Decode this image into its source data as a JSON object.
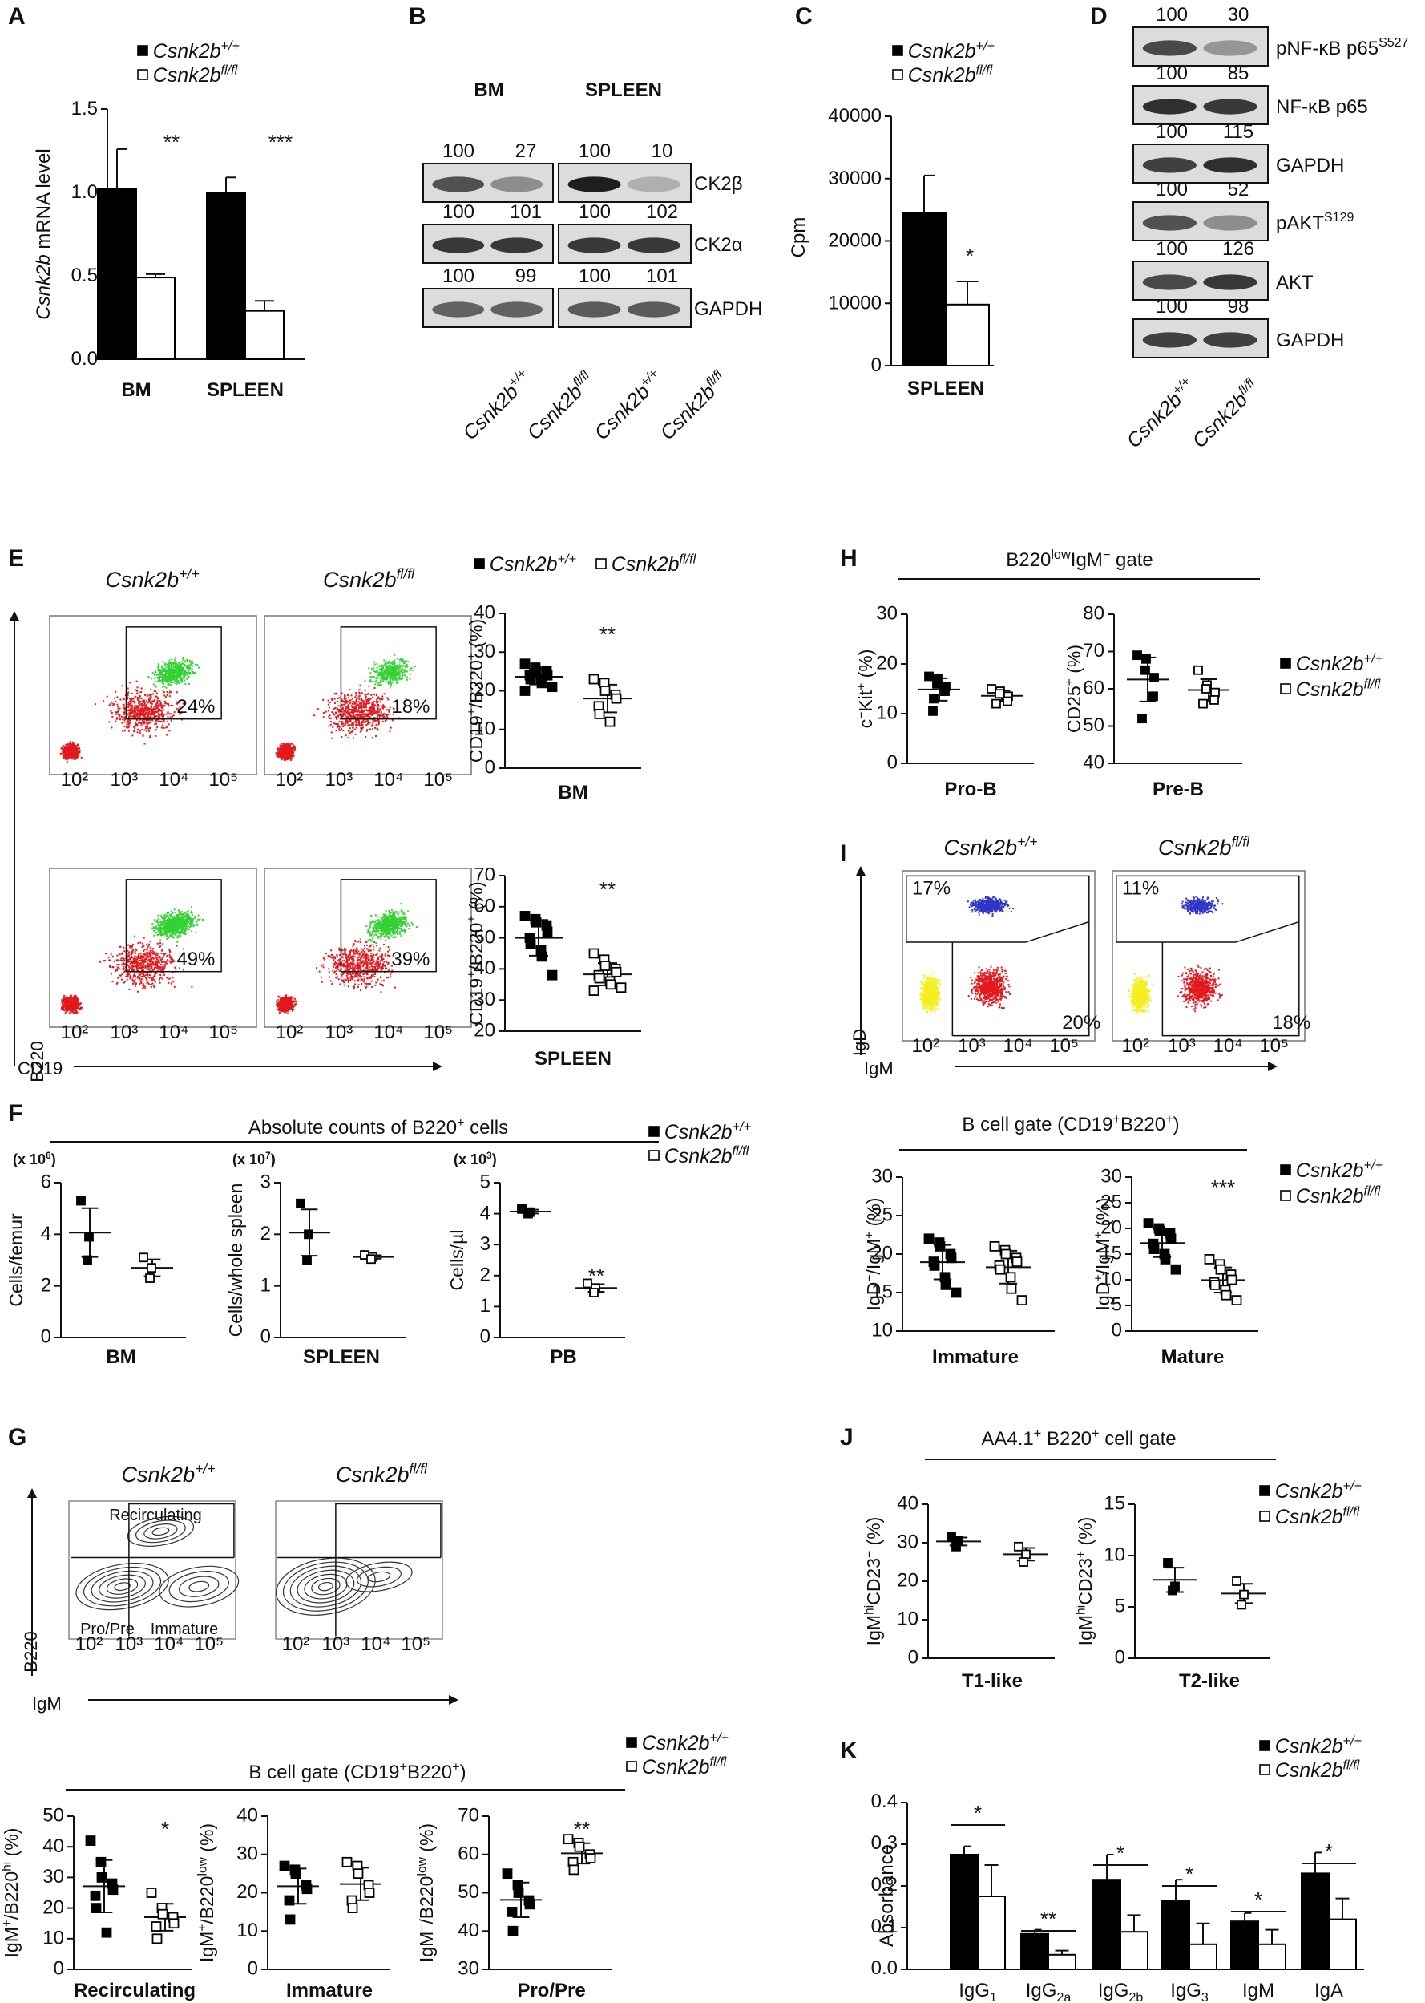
{
  "figure": {
    "panel_labels": [
      "A",
      "B",
      "C",
      "D",
      "E",
      "F",
      "G",
      "H",
      "I",
      "J",
      "K"
    ],
    "genotypes": {
      "wt": "Csnk2b+/+",
      "ko": "Csnk2bfl/fl"
    },
    "colors": {
      "wt_fill": "#000000",
      "ko_fill": "#ffffff",
      "dot_red": "#e4181c",
      "dot_green": "#32d233",
      "dot_blue": "#2f35c8",
      "dot_yellow": "#f4ee22"
    }
  },
  "panelA": {
    "ylabel": "Csnk2b mRNA level",
    "chart_data": {
      "type": "bar",
      "categories": [
        "BM",
        "SPLEEN"
      ],
      "series": [
        {
          "name": "Csnk2b+/+",
          "values": [
            1.02,
            1.0
          ],
          "errors": [
            0.24,
            0.09
          ]
        },
        {
          "name": "Csnk2bfl/fl",
          "values": [
            0.49,
            0.29
          ],
          "errors": [
            0.02,
            0.06
          ]
        }
      ],
      "ylim": [
        0,
        1.5
      ],
      "yticks": [
        "0.0",
        "0.5",
        "1.0",
        "1.5"
      ],
      "significance": [
        "**",
        "***"
      ]
    }
  },
  "panelB": {
    "headers": [
      "BM",
      "SPLEEN"
    ],
    "rows": [
      {
        "label": "CK2β",
        "values": [
          "100",
          "27",
          "100",
          "10"
        ]
      },
      {
        "label": "CK2α",
        "values": [
          "100",
          "101",
          "100",
          "102"
        ]
      },
      {
        "label": "GAPDH",
        "values": [
          "100",
          "99",
          "100",
          "101"
        ]
      }
    ]
  },
  "panelC": {
    "ylabel": "Cpm",
    "chart_data": {
      "type": "bar",
      "categories": [
        "SPLEEN"
      ],
      "series": [
        {
          "name": "Csnk2b+/+",
          "values": [
            24500
          ],
          "errors": [
            6000
          ]
        },
        {
          "name": "Csnk2bfl/fl",
          "values": [
            9800
          ],
          "errors": [
            3700
          ]
        }
      ],
      "ylim": [
        0,
        40000
      ],
      "yticks": [
        "0",
        "10000",
        "20000",
        "30000",
        "40000"
      ],
      "significance": [
        "*"
      ]
    }
  },
  "panelD": {
    "rows": [
      {
        "label": "pNF-κB p65",
        "sup": "S527",
        "values": [
          "100",
          "30"
        ]
      },
      {
        "label": "NF-κB p65",
        "sup": "",
        "values": [
          "100",
          "85"
        ]
      },
      {
        "label": "GAPDH",
        "sup": "",
        "values": [
          "100",
          "115"
        ]
      },
      {
        "label": "pAKT",
        "sup": "S129",
        "values": [
          "100",
          "52"
        ]
      },
      {
        "label": "AKT",
        "sup": "",
        "values": [
          "100",
          "126"
        ]
      },
      {
        "label": "GAPDH",
        "sup": "",
        "values": [
          "100",
          "98"
        ]
      }
    ]
  },
  "panelE": {
    "xaxis": "CD19",
    "yaxis": "B220",
    "gates": [
      {
        "tissue": "BM",
        "wt": "24%",
        "ko": "18%"
      },
      {
        "tissue": "SPLEEN",
        "wt": "49%",
        "ko": "39%"
      }
    ],
    "chart_data": [
      {
        "type": "scatter",
        "title": "BM",
        "ylabel": "CD19+/B220+ (%)",
        "ylim": [
          0,
          40
        ],
        "yticks": [
          "0",
          "10",
          "20",
          "30",
          "40"
        ],
        "wt": [
          27,
          26,
          25,
          25,
          24,
          24,
          23,
          23,
          22,
          21,
          20
        ],
        "ko": [
          23,
          22,
          20,
          19,
          18,
          16,
          14,
          12
        ],
        "significance": "**"
      },
      {
        "type": "scatter",
        "title": "SPLEEN",
        "ylabel": "CD19+/B220+ (%)",
        "ylim": [
          20,
          70
        ],
        "yticks": [
          "20",
          "30",
          "40",
          "50",
          "60",
          "70"
        ],
        "wt": [
          57,
          56,
          55,
          54,
          52,
          50,
          48,
          46,
          44,
          38
        ],
        "ko": [
          45,
          43,
          41,
          40,
          39,
          38,
          37,
          36,
          35,
          34,
          33
        ],
        "significance": "**"
      }
    ]
  },
  "panelF": {
    "title": "Absolute counts of B220+ cells",
    "chart_data": [
      {
        "type": "scatter",
        "title": "BM",
        "multiplier": "(x 106)",
        "ylabel": "Cells/femur",
        "ylim": [
          0,
          6
        ],
        "yticks": [
          "0",
          "2",
          "4",
          "6"
        ],
        "wt": [
          5.3,
          3.9,
          3.0
        ],
        "ko": [
          3.1,
          2.7,
          2.3
        ],
        "significance": ""
      },
      {
        "type": "scatter",
        "title": "SPLEEN",
        "multiplier": "(x 107)",
        "ylabel": "Cells/whole spleen",
        "ylim": [
          0,
          3
        ],
        "yticks": [
          "0",
          "1",
          "2",
          "3"
        ],
        "wt": [
          2.6,
          2.0,
          1.5
        ],
        "ko": [
          1.6,
          1.56,
          1.52
        ],
        "significance": ""
      },
      {
        "type": "scatter",
        "title": "PB",
        "multiplier": "(x 103)",
        "ylabel": "Cells/µl",
        "ylim": [
          0,
          5
        ],
        "yticks": [
          "0",
          "1",
          "2",
          "3",
          "4",
          "5"
        ],
        "wt": [
          4.15,
          4.05,
          4.0
        ],
        "ko": [
          1.75,
          1.6,
          1.45
        ],
        "significance": "**"
      }
    ]
  },
  "panelG": {
    "xaxis": "IgM",
    "yaxis": "B220",
    "gate_labels": [
      "Recirculating",
      "Pro/Pre",
      "Immature"
    ],
    "title": "B cell gate (CD19+B220+)",
    "chart_data": [
      {
        "type": "scatter",
        "title": "Recirculating",
        "ylabel": "IgM+/B220hi (%)",
        "ylim": [
          0,
          50
        ],
        "yticks": [
          "0",
          "10",
          "20",
          "30",
          "40",
          "50"
        ],
        "wt": [
          42,
          35,
          30,
          28,
          26,
          24,
          20,
          12
        ],
        "ko": [
          25,
          20,
          18,
          17,
          15,
          14,
          10
        ],
        "significance": "*"
      },
      {
        "type": "scatter",
        "title": "Immature",
        "ylabel": "IgM+/B220low (%)",
        "ylim": [
          0,
          40
        ],
        "yticks": [
          "0",
          "10",
          "20",
          "30",
          "40"
        ],
        "wt": [
          27,
          26,
          25,
          22,
          21,
          18,
          13
        ],
        "ko": [
          28,
          27,
          25,
          22,
          20,
          18,
          16
        ],
        "significance": ""
      },
      {
        "type": "scatter",
        "title": "Pro/Pre",
        "ylabel": "IgM-/B220low (%)",
        "ylim": [
          30,
          70
        ],
        "yticks": [
          "30",
          "40",
          "50",
          "60",
          "70"
        ],
        "wt": [
          55,
          52,
          50,
          48,
          47,
          45,
          40
        ],
        "ko": [
          64,
          63,
          62,
          60,
          59,
          58,
          56
        ],
        "significance": "**"
      }
    ]
  },
  "panelH": {
    "title": "B220lowIgM- gate",
    "chart_data": [
      {
        "type": "scatter",
        "title": "Pro-B",
        "ylabel": "c-Kit+ (%)",
        "ylim": [
          0,
          30
        ],
        "yticks": [
          "0",
          "10",
          "20",
          "30"
        ],
        "wt": [
          17.5,
          17,
          16,
          15.5,
          14.5,
          13,
          10.5
        ],
        "ko": [
          15,
          14.5,
          14,
          13.5,
          12.5,
          12
        ],
        "significance": ""
      },
      {
        "type": "scatter",
        "title": "Pre-B",
        "ylabel": "CD25+ (%)",
        "ylim": [
          40,
          80
        ],
        "yticks": [
          "40",
          "50",
          "60",
          "70",
          "80"
        ],
        "wt": [
          69,
          68,
          65,
          63,
          58,
          52
        ],
        "ko": [
          65,
          61,
          60,
          59,
          57,
          56
        ],
        "significance": ""
      }
    ]
  },
  "panelI": {
    "xaxis": "IgM",
    "yaxis": "IgD",
    "gates": [
      {
        "wt": "17%",
        "ko": "11%"
      },
      {
        "wt": "20%",
        "ko": "18%"
      }
    ],
    "title": "B cell gate (CD19+B220+)",
    "chart_data": [
      {
        "type": "scatter",
        "title": "Immature",
        "ylabel": "IgD-/IgM+ (%)",
        "ylim": [
          10,
          30
        ],
        "yticks": [
          "10",
          "15",
          "20",
          "25",
          "30"
        ],
        "wt": [
          22,
          21.5,
          21,
          20,
          19.5,
          19,
          18.5,
          17,
          16,
          15
        ],
        "ko": [
          21,
          20.5,
          20,
          19.5,
          19,
          18.5,
          18,
          17,
          15.5,
          14
        ],
        "significance": ""
      },
      {
        "type": "scatter",
        "title": "Mature",
        "ylabel": "IgD+/IgM+ (%)",
        "ylim": [
          0,
          30
        ],
        "yticks": [
          "0",
          "5",
          "10",
          "15",
          "20",
          "25",
          "30"
        ],
        "wt": [
          21,
          20,
          19.5,
          19,
          18,
          17,
          16,
          15,
          14,
          12
        ],
        "ko": [
          14,
          13,
          12,
          11,
          10,
          9.5,
          9,
          8,
          7,
          6
        ],
        "significance": "***"
      }
    ]
  },
  "panelJ": {
    "title": "AA4.1+ B220+ cell gate",
    "chart_data": [
      {
        "type": "scatter",
        "title": "T1-like",
        "ylabel": "IgMhiCD23- (%)",
        "ylim": [
          0,
          40
        ],
        "yticks": [
          "0",
          "10",
          "20",
          "30",
          "40"
        ],
        "wt": [
          31.5,
          30.5,
          29
        ],
        "ko": [
          29,
          27,
          25
        ],
        "significance": ""
      },
      {
        "type": "scatter",
        "title": "T2-like",
        "ylabel": "IgMhiCD23+ (%)",
        "ylim": [
          0,
          15
        ],
        "yticks": [
          "0",
          "5",
          "10",
          "15"
        ],
        "wt": [
          9.3,
          7,
          6.6
        ],
        "ko": [
          7.5,
          6.2,
          5.2
        ],
        "significance": ""
      }
    ]
  },
  "panelK": {
    "ylabel": "Absorbance",
    "chart_data": {
      "type": "bar",
      "categories": [
        "IgG1",
        "IgG2a",
        "IgG2b",
        "IgG3",
        "IgM",
        "IgA"
      ],
      "series": [
        {
          "name": "Csnk2b+/+",
          "values": [
            0.275,
            0.085,
            0.215,
            0.165,
            0.115,
            0.23
          ],
          "errors": [
            0.02,
            0.01,
            0.06,
            0.05,
            0.02,
            0.05
          ]
        },
        {
          "name": "Csnk2bfl/fl",
          "values": [
            0.175,
            0.035,
            0.09,
            0.06,
            0.06,
            0.12
          ],
          "errors": [
            0.075,
            0.01,
            0.04,
            0.05,
            0.035,
            0.05
          ]
        }
      ],
      "ylim": [
        0,
        0.4
      ],
      "yticks": [
        "0.0",
        "0.1",
        "0.2",
        "0.3",
        "0.4"
      ],
      "significance": [
        "*",
        "**",
        "*",
        "*",
        "*",
        "*"
      ]
    }
  }
}
